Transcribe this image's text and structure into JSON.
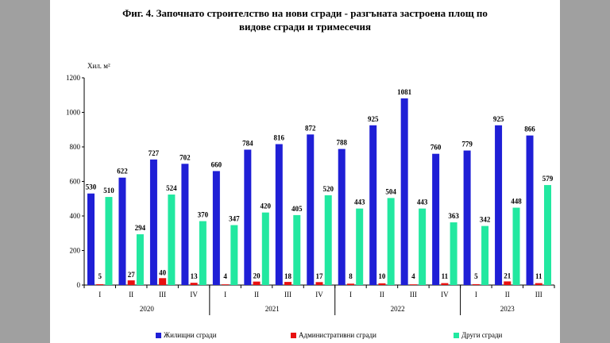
{
  "figure": {
    "title_line1": "Фиг. 4. Започнато строителство на нови сгради - разгъната застроена площ по",
    "title_line2": "видове сгради и тримесечия"
  },
  "chart_data": {
    "type": "bar",
    "ylabel": "Хил. м²",
    "ylim": [
      0,
      1200
    ],
    "yticks": [
      0,
      200,
      400,
      600,
      800,
      1000,
      1200
    ],
    "categories": [
      "I",
      "II",
      "III",
      "IV",
      "I",
      "II",
      "III",
      "IV",
      "I",
      "II",
      "III",
      "IV",
      "I",
      "II",
      "III"
    ],
    "years": [
      {
        "label": "2020",
        "quarters": 4
      },
      {
        "label": "2021",
        "quarters": 4
      },
      {
        "label": "2022",
        "quarters": 4
      },
      {
        "label": "2023",
        "quarters": 3
      }
    ],
    "series": [
      {
        "name": "Жилищни сгради",
        "color": "#1f1fd6",
        "values": [
          530,
          622,
          727,
          702,
          660,
          784,
          816,
          872,
          788,
          925,
          1081,
          760,
          779,
          925,
          866
        ]
      },
      {
        "name": "Административни сгради",
        "color": "#e81010",
        "values": [
          5,
          27,
          40,
          13,
          4,
          20,
          18,
          17,
          8,
          10,
          4,
          11,
          5,
          21,
          11
        ]
      },
      {
        "name": "Други сгради",
        "color": "#22e8a0",
        "values": [
          510,
          294,
          524,
          370,
          347,
          420,
          405,
          520,
          443,
          504,
          443,
          363,
          342,
          448,
          579
        ]
      }
    ],
    "legend_position": "bottom",
    "grid": false
  }
}
